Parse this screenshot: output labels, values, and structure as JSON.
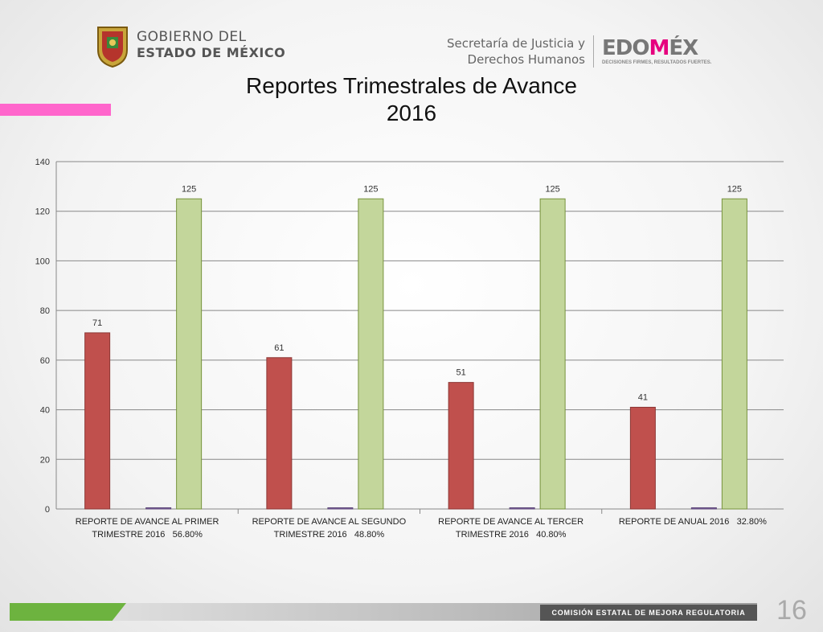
{
  "header": {
    "gov_line1": "GOBIERNO DEL",
    "gov_line2": "ESTADO DE MÉXICO",
    "secretaria_line1": "Secretaría de Justicia y",
    "secretaria_line2": "Derechos Humanos",
    "brand_part1": "EDO",
    "brand_part2": "M",
    "brand_part3": "ÉX",
    "brand_tagline": "DECISIONES FIRMES, RESULTADOS FUERTES."
  },
  "colors": {
    "red_series": "#c0504d",
    "green_series": "#c3d69b",
    "purple_series": "#8064a2",
    "pink_accent": "#ff66cc",
    "footer_green": "#6db33f"
  },
  "chart_data": {
    "type": "bar",
    "title_line1": "Reportes Trimestrales de Avance",
    "title_line2": "2016",
    "categories": [
      [
        "REPORTE DE AVANCE AL PRIMER",
        "TRIMESTRE 2016   56.80%"
      ],
      [
        "REPORTE DE AVANCE AL SEGUNDO",
        "TRIMESTRE 2016   48.80%"
      ],
      [
        "REPORTE DE AVANCE AL TERCER",
        "TRIMESTRE 2016   40.80%"
      ],
      [
        "REPORTE DE ANUAL 2016   32.80%"
      ]
    ],
    "series": [
      {
        "values": [
          71,
          61,
          51,
          41
        ],
        "color": "#c0504d",
        "labels": [
          "71",
          "61",
          "51",
          "41"
        ]
      },
      {
        "values": [
          0.5,
          0.5,
          0.5,
          0.5
        ],
        "color": "#8064a2",
        "labels": []
      },
      {
        "values": [
          125,
          125,
          125,
          125
        ],
        "color": "#c3d69b",
        "labels": [
          "125",
          "125",
          "125",
          "125"
        ]
      }
    ],
    "yticks": [
      "0",
      "20",
      "40",
      "60",
      "80",
      "100",
      "120",
      "140"
    ],
    "ylim": [
      0,
      140
    ],
    "grid": true,
    "legend": "none"
  },
  "footer": {
    "commission": "COMISIÓN ESTATAL DE MEJORA REGULATORIA",
    "page_number": "16"
  }
}
